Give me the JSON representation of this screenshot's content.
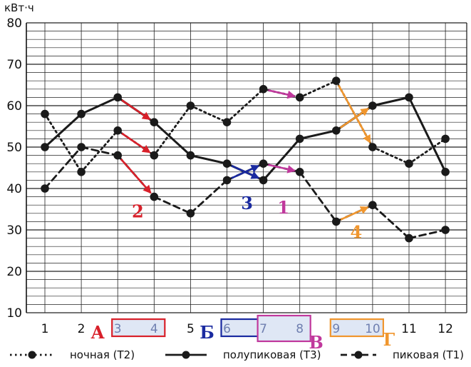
{
  "chart_data": {
    "type": "line",
    "y_unit": "кВт·ч",
    "ylim": [
      10,
      80
    ],
    "y_major_ticks": [
      10,
      20,
      30,
      40,
      50,
      60,
      70,
      80
    ],
    "y_minor_step": 2,
    "grid": true,
    "legend_position": "bottom",
    "x": [
      1,
      2,
      3,
      4,
      5,
      6,
      7,
      8,
      9,
      10,
      11,
      12
    ],
    "x_tick_labels": [
      "1",
      "2",
      "3",
      "4",
      "5",
      "6",
      "7",
      "8",
      "9",
      "10",
      "11",
      "12"
    ],
    "series": [
      {
        "name": "ночная (Т2)",
        "style": "dotted",
        "values": [
          58,
          44,
          54,
          48,
          60,
          56,
          64,
          62,
          66,
          50,
          46,
          52
        ]
      },
      {
        "name": "полупиковая (Т3)",
        "style": "solid",
        "values": [
          50,
          58,
          62,
          56,
          48,
          46,
          42,
          52,
          54,
          60,
          62,
          44
        ]
      },
      {
        "name": "пиковая (Т1)",
        "style": "dashed",
        "values": [
          40,
          50,
          48,
          38,
          34,
          42,
          46,
          44,
          32,
          36,
          28,
          30
        ]
      }
    ],
    "annotations": [
      {
        "label": "1",
        "color": "#c0389c",
        "arrows": [
          {
            "from": [
              7,
              64
            ],
            "to": [
              8,
              62
            ]
          },
          {
            "from": [
              7,
              46
            ],
            "to": [
              8,
              44
            ]
          }
        ],
        "label_pos": [
          7.55,
          34
        ]
      },
      {
        "label": "2",
        "color": "#d8202a",
        "arrows": [
          {
            "from": [
              3,
              62
            ],
            "to": [
              4,
              56
            ]
          },
          {
            "from": [
              3,
              54
            ],
            "to": [
              4,
              48
            ]
          },
          {
            "from": [
              3,
              48
            ],
            "to": [
              4,
              38
            ]
          }
        ],
        "label_pos": [
          3.55,
          33
        ]
      },
      {
        "label": "3",
        "color": "#1a2aa0",
        "arrows": [
          {
            "from": [
              6,
              42
            ],
            "to": [
              7,
              46
            ]
          },
          {
            "from": [
              6,
              46
            ],
            "to": [
              7,
              42
            ]
          }
        ],
        "label_pos": [
          6.55,
          35
        ]
      },
      {
        "label": "4",
        "color": "#f0962e",
        "arrows": [
          {
            "from": [
              9,
              66
            ],
            "to": [
              10,
              50
            ]
          },
          {
            "from": [
              9,
              54
            ],
            "to": [
              10,
              60
            ]
          },
          {
            "from": [
              9,
              32
            ],
            "to": [
              10,
              36
            ]
          }
        ],
        "label_pos": [
          9.55,
          28
        ]
      }
    ],
    "boxes": [
      {
        "letter": "А",
        "months": [
          3,
          4
        ],
        "color": "#d8202a"
      },
      {
        "letter": "Б",
        "months": [
          6,
          7
        ],
        "color": "#1a2aa0"
      },
      {
        "letter": "В",
        "months": [
          7,
          8
        ],
        "color": "#c0389c"
      },
      {
        "letter": "Г",
        "months": [
          9,
          10
        ],
        "color": "#f0962e"
      }
    ],
    "colors": {
      "line": "#1a1a1a",
      "grid": "#222222",
      "box_fill": "#dfe7f5"
    }
  }
}
